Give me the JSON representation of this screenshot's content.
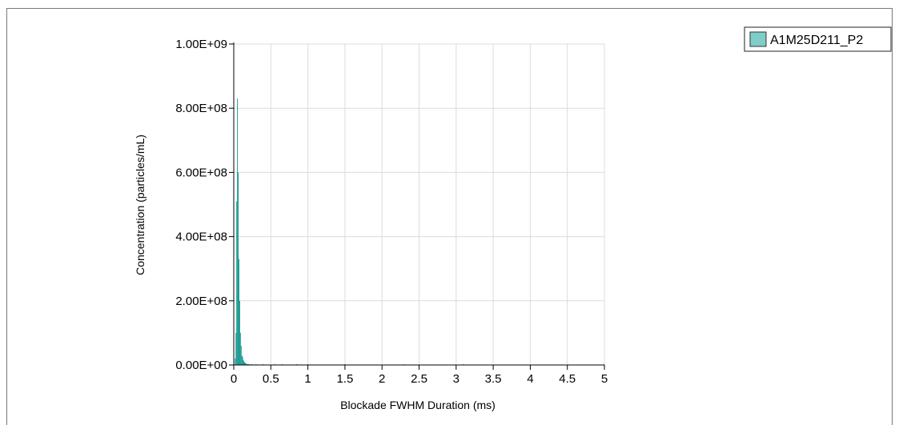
{
  "chart_data": {
    "type": "bar",
    "title": "",
    "xlabel": "Blockade FWHM Duration (ms)",
    "ylabel": "Concentration (particles/mL)",
    "xlim": [
      0,
      5
    ],
    "ylim": [
      0,
      1000000000
    ],
    "x_ticks": [
      "0",
      "0.5",
      "1",
      "1.5",
      "2",
      "2.5",
      "3",
      "3.5",
      "4",
      "4.5",
      "5"
    ],
    "y_ticks": [
      "0.00E+00",
      "2.00E+08",
      "4.00E+08",
      "6.00E+08",
      "8.00E+08",
      "1.00E+09"
    ],
    "grid": true,
    "legend_position": "top-right",
    "series": [
      {
        "name": "A1M25D211_P2",
        "color": "#1a9a93",
        "legend_color": "#7ecdc8",
        "bin_width": 0.01,
        "x": [
          0.02,
          0.03,
          0.04,
          0.05,
          0.06,
          0.07,
          0.08,
          0.09,
          0.1,
          0.11,
          0.12,
          0.13,
          0.14,
          0.15,
          0.16,
          0.17,
          0.18,
          0.19,
          0.2,
          0.22,
          0.25,
          0.3,
          0.4,
          0.55,
          0.65,
          0.85,
          1.0,
          1.5,
          2.3,
          3.1,
          5.0
        ],
        "values": [
          20000000,
          100000000,
          510000000,
          830000000,
          600000000,
          330000000,
          200000000,
          100000000,
          60000000,
          30000000,
          25000000,
          15000000,
          10000000,
          8000000,
          5000000,
          4000000,
          3000000,
          2000000,
          2000000,
          1000000,
          1000000,
          1000000,
          1000000,
          1000000,
          2000000,
          1000000,
          1000000,
          2000000,
          1000000,
          1000000,
          2000000
        ]
      }
    ]
  }
}
